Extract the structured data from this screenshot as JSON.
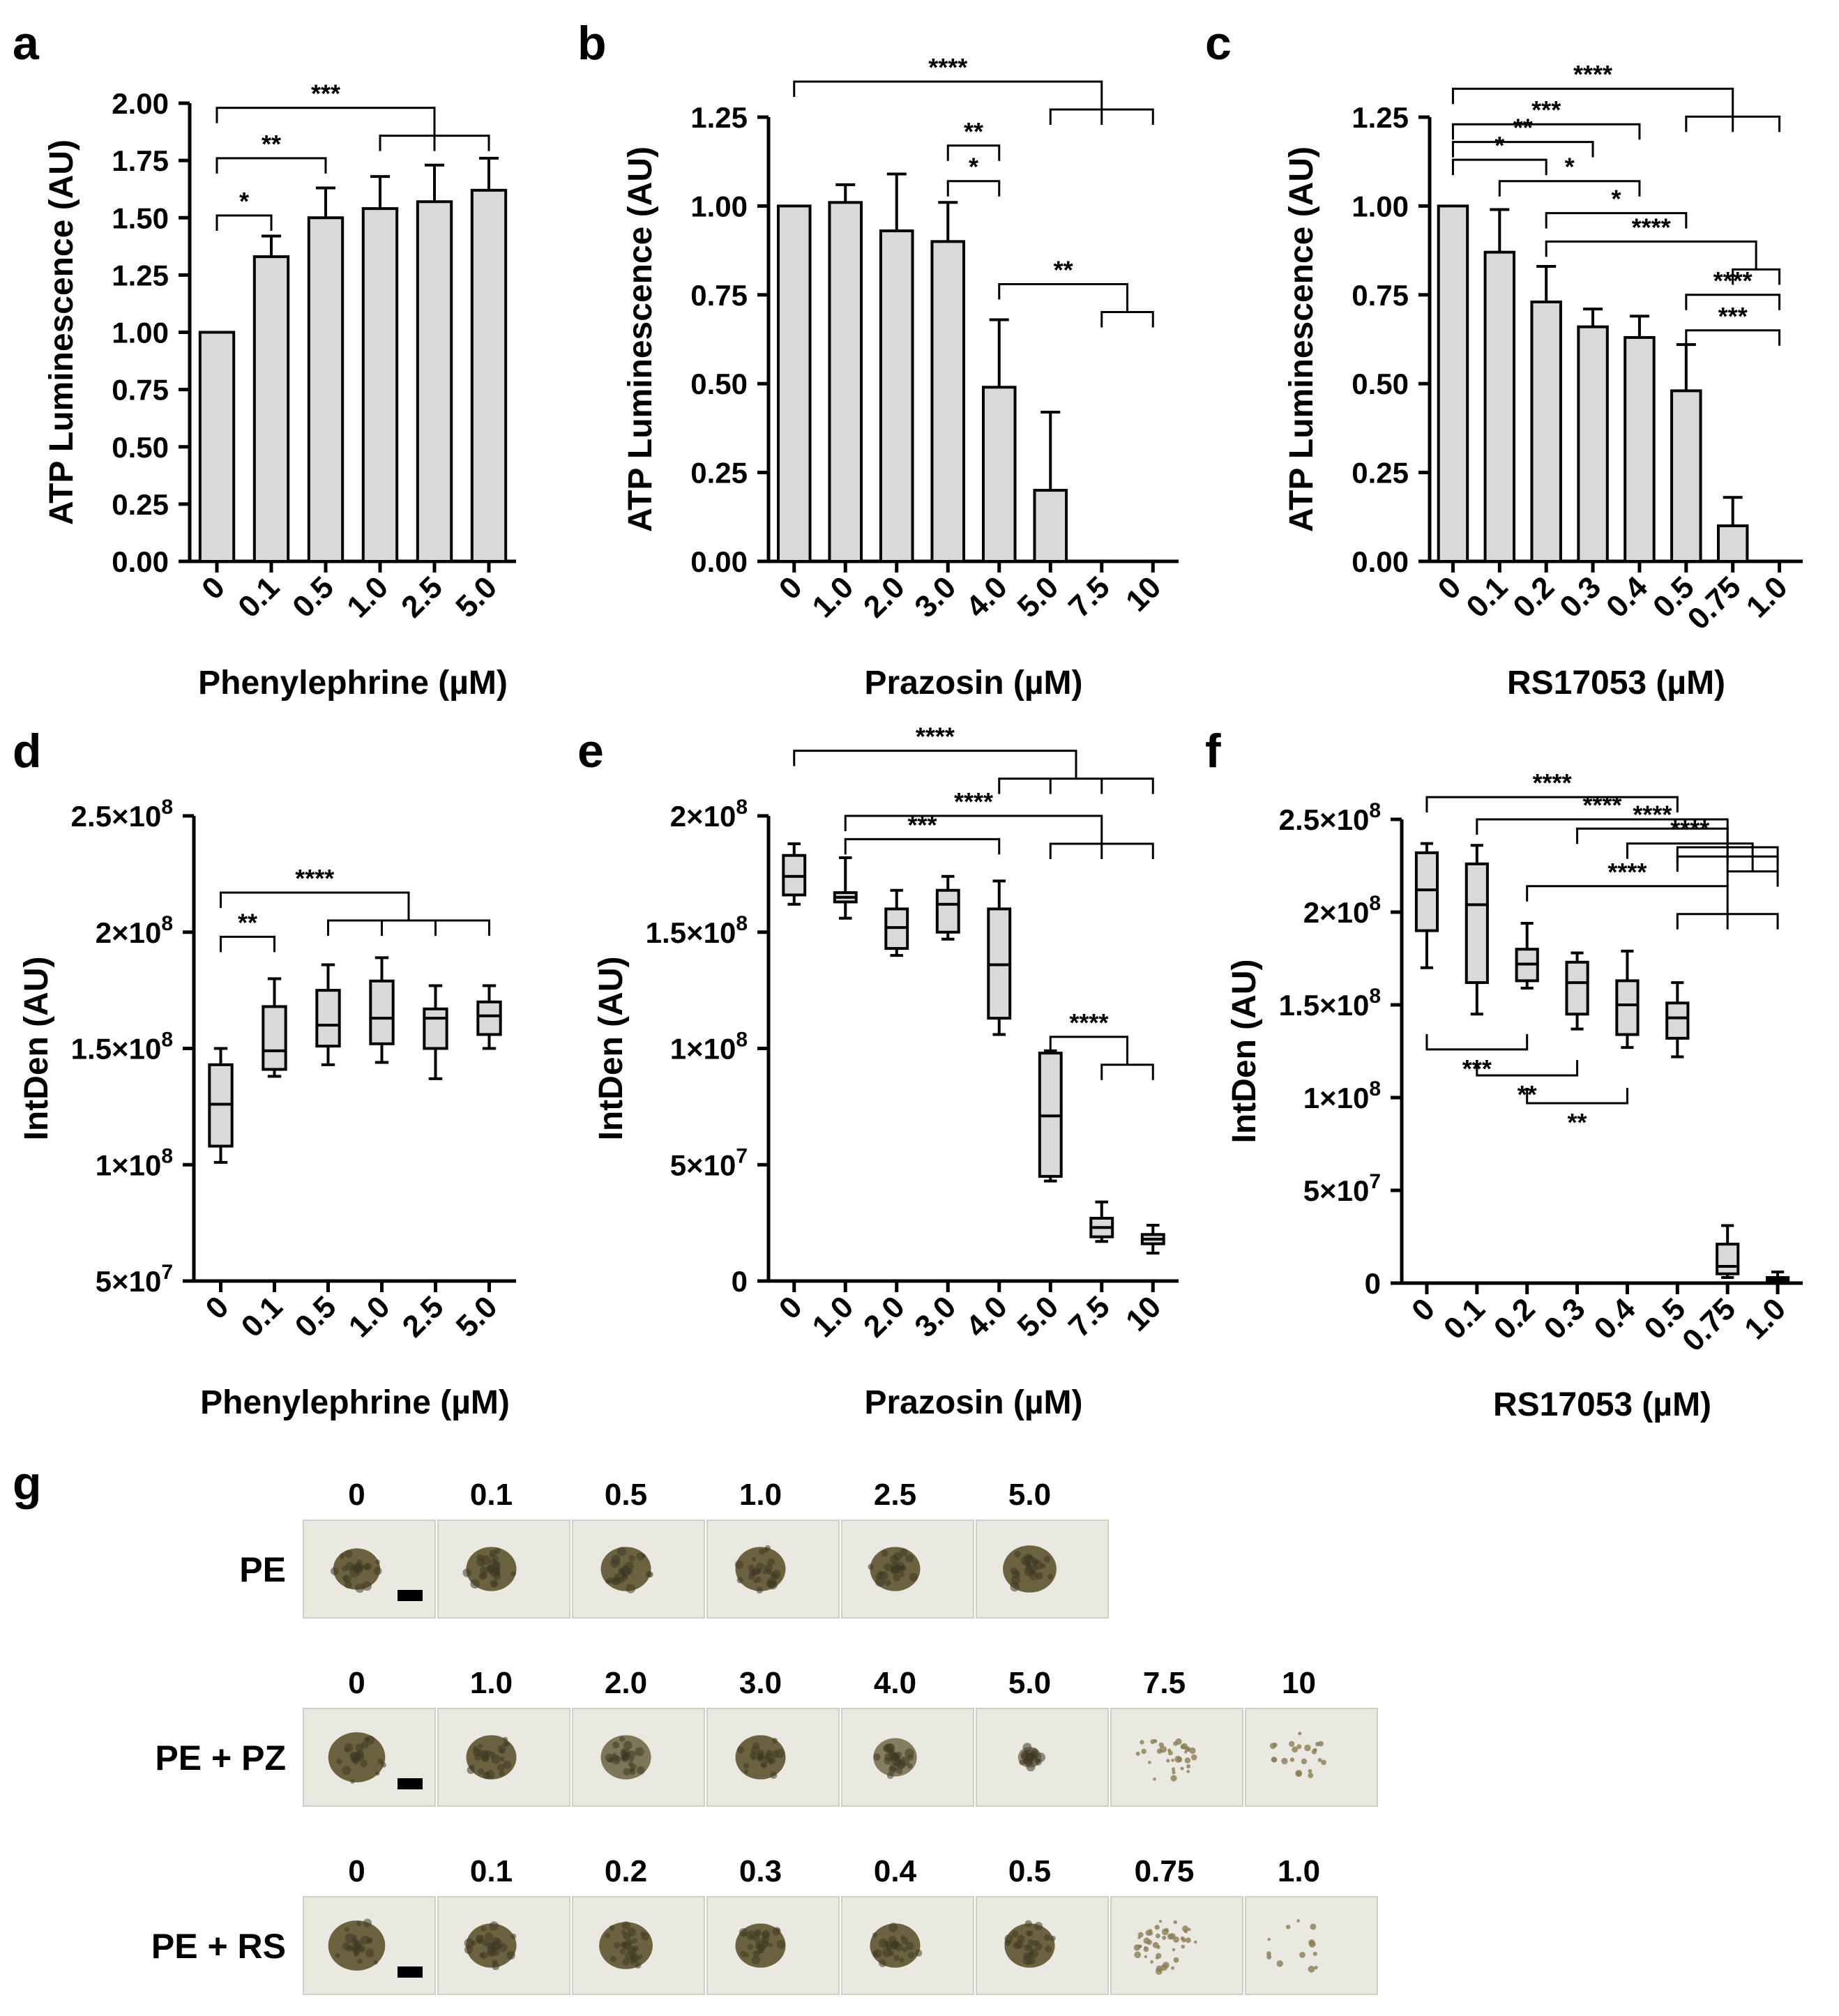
{
  "figure": {
    "panels": [
      {
        "id": "a",
        "label": "a"
      },
      {
        "id": "b",
        "label": "b"
      },
      {
        "id": "c",
        "label": "c"
      },
      {
        "id": "d",
        "label": "d"
      },
      {
        "id": "e",
        "label": "e"
      },
      {
        "id": "f",
        "label": "f"
      },
      {
        "id": "g",
        "label": "g"
      }
    ]
  },
  "chart_data": [
    {
      "panel": "a",
      "type": "bar",
      "title": "",
      "xlabel": "Phenylephrine (µM)",
      "ylabel": "ATP Luminescence (AU)",
      "categories": [
        "0",
        "0.1",
        "0.5",
        "1.0",
        "2.5",
        "5.0"
      ],
      "values": [
        1.0,
        1.33,
        1.5,
        1.54,
        1.57,
        1.62
      ],
      "errors": [
        0,
        0.09,
        0.13,
        0.14,
        0.16,
        0.14
      ],
      "ylim": [
        0,
        2.0
      ],
      "yticks": [
        0.0,
        0.25,
        0.5,
        0.75,
        1.0,
        1.25,
        1.5,
        1.75,
        2.0
      ],
      "ytick_labels": [
        "0.00",
        "0.25",
        "0.50",
        "0.75",
        "1.00",
        "1.25",
        "1.50",
        "1.75",
        "2.00"
      ],
      "significance": [
        {
          "from": 0,
          "to": [
            1
          ],
          "label": "*",
          "y": 1.51
        },
        {
          "from": 0,
          "to": [
            2
          ],
          "label": "**",
          "y": 1.76
        },
        {
          "from": 0,
          "to": [
            3,
            4,
            5
          ],
          "label": "***",
          "y": 1.98
        }
      ]
    },
    {
      "panel": "b",
      "type": "bar",
      "title": "",
      "xlabel": "Prazosin (µM)",
      "ylabel": "ATP Luminescence (AU)",
      "categories": [
        "0",
        "1.0",
        "2.0",
        "3.0",
        "4.0",
        "5.0",
        "7.5",
        "10"
      ],
      "values": [
        1.0,
        1.01,
        0.93,
        0.9,
        0.49,
        0.2,
        0,
        0
      ],
      "errors": [
        0,
        0.05,
        0.16,
        0.11,
        0.19,
        0.22,
        0,
        0
      ],
      "ylim": [
        0,
        1.25
      ],
      "yticks": [
        0.0,
        0.25,
        0.5,
        0.75,
        1.0,
        1.25
      ],
      "ytick_labels": [
        "0.00",
        "0.25",
        "0.50",
        "0.75",
        "1.00",
        "1.25"
      ],
      "significance": [
        {
          "from": 3,
          "to": [
            4
          ],
          "label": "*",
          "y": 1.07
        },
        {
          "from": 3,
          "to": [
            4
          ],
          "label": "**",
          "y": 1.17
        },
        {
          "from": 4,
          "to": [
            6,
            7
          ],
          "label": "**",
          "y": 0.78
        },
        {
          "from": 0,
          "to": [
            5,
            6,
            7
          ],
          "label": "****",
          "y": 1.35
        }
      ]
    },
    {
      "panel": "c",
      "type": "bar",
      "title": "",
      "xlabel": "RS17053 (µM)",
      "ylabel": "ATP Luminescence (AU)",
      "categories": [
        "0",
        "0.1",
        "0.2",
        "0.3",
        "0.4",
        "0.5",
        "0.75",
        "1.0"
      ],
      "values": [
        1.0,
        0.87,
        0.73,
        0.66,
        0.63,
        0.48,
        0.1,
        0
      ],
      "errors": [
        0,
        0.12,
        0.1,
        0.05,
        0.06,
        0.13,
        0.08,
        0
      ],
      "ylim": [
        0,
        1.25
      ],
      "yticks": [
        0.0,
        0.25,
        0.5,
        0.75,
        1.0,
        1.25
      ],
      "ytick_labels": [
        "0.00",
        "0.25",
        "0.50",
        "0.75",
        "1.00",
        "1.25"
      ],
      "significance": [
        {
          "from": 0,
          "to": [
            2
          ],
          "label": "*",
          "y": 1.13
        },
        {
          "from": 0,
          "to": [
            3
          ],
          "label": "**",
          "y": 1.18
        },
        {
          "from": 0,
          "to": [
            4
          ],
          "label": "***",
          "y": 1.23
        },
        {
          "from": 1,
          "to": [
            4
          ],
          "label": "*",
          "y": 1.07
        },
        {
          "from": 2,
          "to": [
            5
          ],
          "label": "*",
          "y": 0.98
        },
        {
          "from": 2,
          "to": [
            6,
            7
          ],
          "label": "****",
          "y": 0.9
        },
        {
          "from": 5,
          "to": [
            7
          ],
          "label": "***",
          "y": 0.65
        },
        {
          "from": 5,
          "to": [
            7
          ],
          "label": "****",
          "y": 0.75
        },
        {
          "from": 0,
          "to": [
            5,
            6,
            7
          ],
          "label": "****",
          "y": 1.33
        }
      ]
    },
    {
      "panel": "d",
      "type": "box",
      "title": "",
      "xlabel": "Phenylephrine (µM)",
      "ylabel": "IntDen (AU)",
      "categories": [
        "0",
        "0.1",
        "0.5",
        "1.0",
        "2.5",
        "5.0"
      ],
      "boxes": [
        {
          "min": 101000000.0,
          "q1": 108000000.0,
          "median": 126000000.0,
          "q3": 143000000.0,
          "max": 150000000.0
        },
        {
          "min": 138000000.0,
          "q1": 141000000.0,
          "median": 149000000.0,
          "q3": 168000000.0,
          "max": 180000000.0
        },
        {
          "min": 143000000.0,
          "q1": 151000000.0,
          "median": 160000000.0,
          "q3": 175000000.0,
          "max": 186000000.0
        },
        {
          "min": 144000000.0,
          "q1": 152000000.0,
          "median": 163000000.0,
          "q3": 179000000.0,
          "max": 189000000.0
        },
        {
          "min": 137000000.0,
          "q1": 150000000.0,
          "median": 163000000.0,
          "q3": 167000000.0,
          "max": 177000000.0
        },
        {
          "min": 150000000.0,
          "q1": 156000000.0,
          "median": 164000000.0,
          "q3": 170000000.0,
          "max": 177000000.0
        }
      ],
      "ylim": [
        50000000.0,
        250000000.0
      ],
      "yticks": [
        50000000.0,
        100000000.0,
        150000000.0,
        200000000.0,
        250000000.0
      ],
      "ytick_labels": [
        [
          "5",
          "7"
        ],
        [
          "1",
          "8"
        ],
        [
          "1.5",
          "8"
        ],
        [
          "2",
          "8"
        ],
        [
          "2.5",
          "8"
        ]
      ],
      "significance": [
        {
          "from": 0,
          "to": [
            1
          ],
          "label": "**",
          "y": 198000000.0
        },
        {
          "from": 0,
          "to": [
            2,
            3,
            4,
            5
          ],
          "label": "****",
          "y": 217000000.0
        }
      ]
    },
    {
      "panel": "e",
      "type": "box",
      "title": "",
      "xlabel": "Prazosin (µM)",
      "ylabel": "IntDen (AU)",
      "categories": [
        "0",
        "1.0",
        "2.0",
        "3.0",
        "4.0",
        "5.0",
        "7.5",
        "10"
      ],
      "boxes": [
        {
          "min": 162000000.0,
          "q1": 166000000.0,
          "median": 174000000.0,
          "q3": 183000000.0,
          "max": 188000000.0
        },
        {
          "min": 156000000.0,
          "q1": 163000000.0,
          "median": 165000000.0,
          "q3": 167000000.0,
          "max": 182000000.0
        },
        {
          "min": 140000000.0,
          "q1": 143000000.0,
          "median": 152000000.0,
          "q3": 160000000.0,
          "max": 168000000.0
        },
        {
          "min": 147000000.0,
          "q1": 150000000.0,
          "median": 162000000.0,
          "q3": 168000000.0,
          "max": 174000000.0
        },
        {
          "min": 106000000.0,
          "q1": 113000000.0,
          "median": 136000000.0,
          "q3": 160000000.0,
          "max": 172000000.0
        },
        {
          "min": 43000000.0,
          "q1": 45000000.0,
          "median": 71000000.0,
          "q3": 98000000.0,
          "max": 99000000.0
        },
        {
          "min": 17000000.0,
          "q1": 19000000.0,
          "median": 23000000.0,
          "q3": 27000000.0,
          "max": 34000000.0
        },
        {
          "min": 12000000.0,
          "q1": 16000000.0,
          "median": 18000000.0,
          "q3": 20000000.0,
          "max": 24000000.0
        }
      ],
      "ylim": [
        0,
        200000000.0
      ],
      "yticks": [
        0,
        50000000.0,
        100000000.0,
        150000000.0,
        200000000.0
      ],
      "ytick_labels": [
        [
          "0",
          ""
        ],
        [
          "5",
          "7"
        ],
        [
          "1",
          "8"
        ],
        [
          "1.5",
          "8"
        ],
        [
          "2",
          "8"
        ]
      ],
      "significance": [
        {
          "from": 1,
          "to": [
            4
          ],
          "label": "***",
          "y": 190000000.0
        },
        {
          "from": 1,
          "to": [
            5,
            6,
            7
          ],
          "label": "****",
          "y": 200000000.0
        },
        {
          "from": 0,
          "to": [
            4,
            5,
            6,
            7
          ],
          "label": "****",
          "y": 228000000.0
        },
        {
          "from": 5,
          "to": [
            6,
            7
          ],
          "label": "****",
          "y": 105000000.0
        }
      ]
    },
    {
      "panel": "f",
      "type": "box",
      "title": "",
      "xlabel": "RS17053 (µM)",
      "ylabel": "IntDen (AU)",
      "categories": [
        "0",
        "0.1",
        "0.2",
        "0.3",
        "0.4",
        "0.5",
        "0.75",
        "1.0"
      ],
      "boxes": [
        {
          "min": 170000000.0,
          "q1": 190000000.0,
          "median": 212000000.0,
          "q3": 232000000.0,
          "max": 237000000.0
        },
        {
          "min": 145000000.0,
          "q1": 162000000.0,
          "median": 204000000.0,
          "q3": 226000000.0,
          "max": 236000000.0
        },
        {
          "min": 159000000.0,
          "q1": 163000000.0,
          "median": 172000000.0,
          "q3": 180000000.0,
          "max": 194000000.0
        },
        {
          "min": 137000000.0,
          "q1": 145000000.0,
          "median": 162000000.0,
          "q3": 173000000.0,
          "max": 178000000.0
        },
        {
          "min": 127000000.0,
          "q1": 134000000.0,
          "median": 150000000.0,
          "q3": 163000000.0,
          "max": 179000000.0
        },
        {
          "min": 122000000.0,
          "q1": 132000000.0,
          "median": 143000000.0,
          "q3": 151000000.0,
          "max": 162000000.0
        },
        {
          "min": 3000000.0,
          "q1": 5000000.0,
          "median": 9000000.0,
          "q3": 21000000.0,
          "max": 31000000.0
        },
        {
          "min": 0,
          "q1": 1000000.0,
          "median": 2000000.0,
          "q3": 3000000.0,
          "max": 6000000.0
        }
      ],
      "ylim": [
        0,
        250000000.0
      ],
      "yticks": [
        0,
        50000000.0,
        100000000.0,
        150000000.0,
        200000000.0,
        250000000.0
      ],
      "ytick_labels": [
        [
          "0",
          ""
        ],
        [
          "5",
          "7"
        ],
        [
          "1",
          "8"
        ],
        [
          "1.5",
          "8"
        ],
        [
          "2",
          "8"
        ],
        [
          "2.5",
          "8"
        ]
      ],
      "significance": [
        {
          "from": 0,
          "to": [
            5
          ],
          "label": "****",
          "y": 262000000.0
        },
        {
          "from": 1,
          "to": [
            5,
            6,
            7
          ],
          "label": "****",
          "y": 250000000.0
        },
        {
          "from": 2,
          "to": [
            5,
            6,
            7
          ],
          "label": "****",
          "y": 214000000.0
        },
        {
          "from": 3,
          "to": [
            5,
            6,
            7
          ],
          "label": "****",
          "y": 245000000.0
        },
        {
          "from": 4,
          "to": [
            6,
            7
          ],
          "label": "****",
          "y": 237000000.0
        },
        {
          "from": 0,
          "to": [
            2
          ],
          "label": "***",
          "y": 126000000.0,
          "below": true
        },
        {
          "from": 1,
          "to": [
            3
          ],
          "label": "**",
          "y": 112000000.0,
          "below": true
        },
        {
          "from": 2,
          "to": [
            4
          ],
          "label": "**",
          "y": 97000000.0,
          "below": true
        }
      ]
    }
  ],
  "panel_g": {
    "rows": [
      {
        "name": "PE",
        "concentrations": [
          "0",
          "0.1",
          "0.5",
          "1.0",
          "2.5",
          "5.0"
        ],
        "spheroid": [
          {
            "r": 0.7,
            "d": 1
          },
          {
            "r": 0.75,
            "d": 1
          },
          {
            "r": 0.75,
            "d": 1
          },
          {
            "r": 0.75,
            "d": 1
          },
          {
            "r": 0.75,
            "d": 1
          },
          {
            "r": 0.8,
            "d": 1
          }
        ]
      },
      {
        "name": "PE + PZ",
        "concentrations": [
          "0",
          "1.0",
          "2.0",
          "3.0",
          "4.0",
          "5.0",
          "7.5",
          "10"
        ],
        "spheroid": [
          {
            "r": 0.85,
            "d": 1
          },
          {
            "r": 0.75,
            "d": 1
          },
          {
            "r": 0.75,
            "d": 0.85
          },
          {
            "r": 0.75,
            "d": 1
          },
          {
            "r": 0.65,
            "d": 0.8
          },
          {
            "r": 0.35,
            "d": 0.7
          },
          {
            "r": 0.9,
            "d": 0.15
          },
          {
            "r": 0.9,
            "d": 0.1
          }
        ]
      },
      {
        "name": "PE + RS",
        "concentrations": [
          "0",
          "0.1",
          "0.2",
          "0.3",
          "0.4",
          "0.5",
          "0.75",
          "1.0"
        ],
        "spheroid": [
          {
            "r": 0.85,
            "d": 1
          },
          {
            "r": 0.75,
            "d": 1
          },
          {
            "r": 0.8,
            "d": 1
          },
          {
            "r": 0.75,
            "d": 1
          },
          {
            "r": 0.75,
            "d": 1
          },
          {
            "r": 0.75,
            "d": 1
          },
          {
            "r": 1.0,
            "d": 0.2
          },
          {
            "r": 1.0,
            "d": 0.06
          }
        ]
      }
    ],
    "colors": {
      "background": "#e9e8e1",
      "spheroid": "#6b6240",
      "debris": "#8a7d55"
    }
  },
  "colors": {
    "bar_fill": "#d9d9d9",
    "stroke": "#000000"
  }
}
